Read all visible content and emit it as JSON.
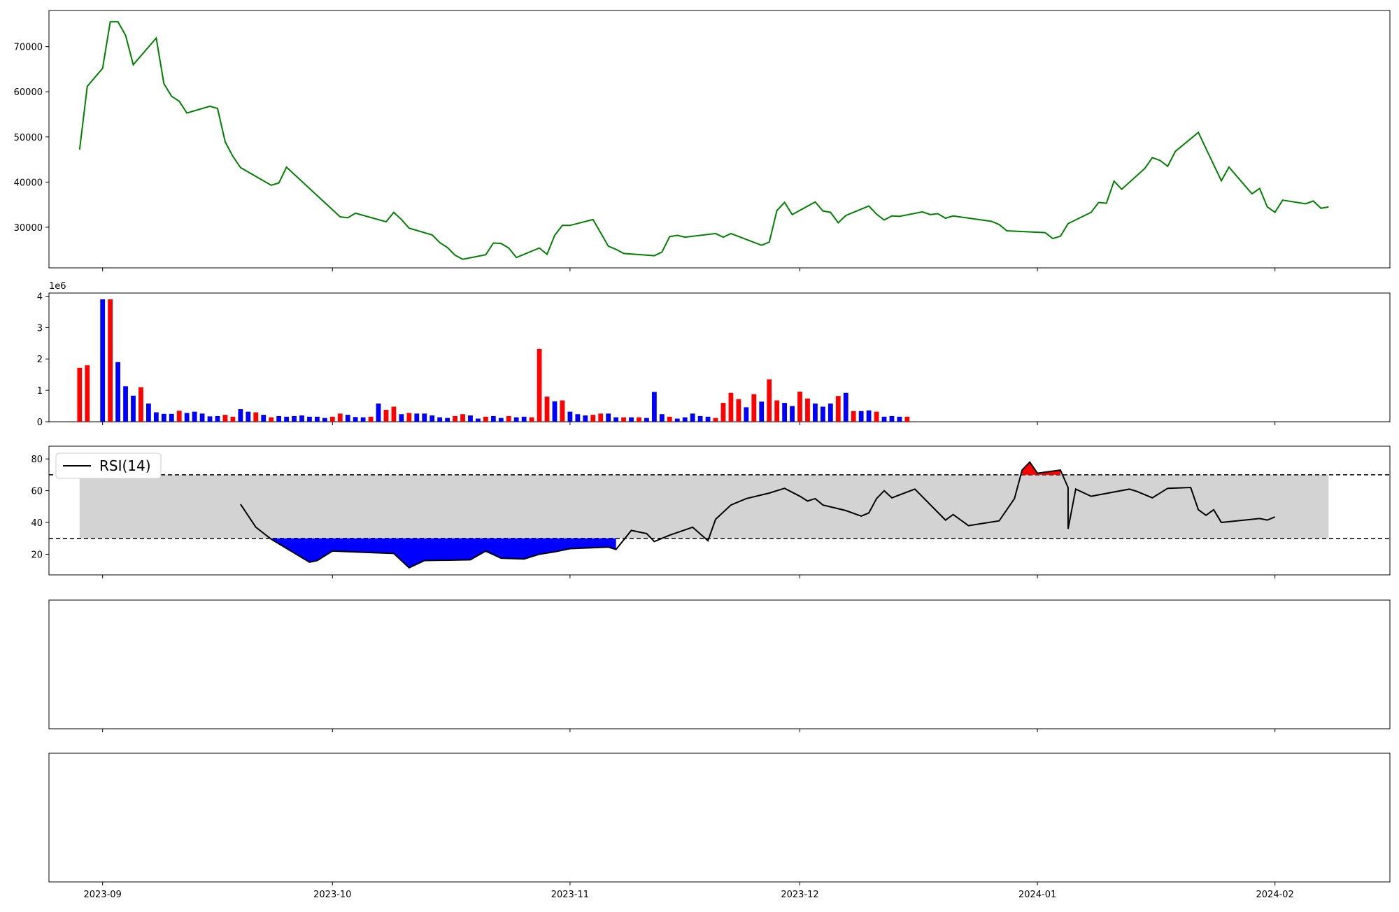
{
  "chart_data": [
    {
      "id": "price",
      "type": "line",
      "color": "#008000",
      "x_range": [
        "2023-08-25",
        "2024-02-16"
      ],
      "ylim": [
        21000,
        78000
      ],
      "yticks": [
        30000,
        40000,
        50000,
        60000,
        70000
      ],
      "ytick_labels": [
        "30000",
        "40000",
        "50000",
        "60000",
        "70000"
      ],
      "points": [
        [
          "2023-08-29",
          47200
        ],
        [
          "2023-08-30",
          61200
        ],
        [
          "2023-09-01",
          65200
        ],
        [
          "2023-09-02",
          75500
        ],
        [
          "2023-09-03",
          75500
        ],
        [
          "2023-09-04",
          72500
        ],
        [
          "2023-09-05",
          66000
        ],
        [
          "2023-09-08",
          71900
        ],
        [
          "2023-09-09",
          61800
        ],
        [
          "2023-09-10",
          59000
        ],
        [
          "2023-09-11",
          57900
        ],
        [
          "2023-09-12",
          55300
        ],
        [
          "2023-09-15",
          56800
        ],
        [
          "2023-09-16",
          56300
        ],
        [
          "2023-09-17",
          48900
        ],
        [
          "2023-09-18",
          45700
        ],
        [
          "2023-09-19",
          43200
        ],
        [
          "2023-09-23",
          39300
        ],
        [
          "2023-09-24",
          39800
        ],
        [
          "2023-09-25",
          43300
        ],
        [
          "2023-10-02",
          32300
        ],
        [
          "2023-10-03",
          32100
        ],
        [
          "2023-10-04",
          33100
        ],
        [
          "2023-10-08",
          31200
        ],
        [
          "2023-10-09",
          33300
        ],
        [
          "2023-10-10",
          31700
        ],
        [
          "2023-10-11",
          29800
        ],
        [
          "2023-10-14",
          28300
        ],
        [
          "2023-10-15",
          26600
        ],
        [
          "2023-10-16",
          25500
        ],
        [
          "2023-10-17",
          23800
        ],
        [
          "2023-10-18",
          22900
        ],
        [
          "2023-10-21",
          23900
        ],
        [
          "2023-10-22",
          26500
        ],
        [
          "2023-10-23",
          26400
        ],
        [
          "2023-10-24",
          25400
        ],
        [
          "2023-10-25",
          23300
        ],
        [
          "2023-10-28",
          25400
        ],
        [
          "2023-10-29",
          24000
        ],
        [
          "2023-10-30",
          28200
        ],
        [
          "2023-10-31",
          30400
        ],
        [
          "2023-11-01",
          30400
        ],
        [
          "2023-11-04",
          31700
        ],
        [
          "2023-11-06",
          25800
        ],
        [
          "2023-11-07",
          25100
        ],
        [
          "2023-11-08",
          24200
        ],
        [
          "2023-11-12",
          23700
        ],
        [
          "2023-11-13",
          24500
        ],
        [
          "2023-11-14",
          27900
        ],
        [
          "2023-11-15",
          28200
        ],
        [
          "2023-11-16",
          27800
        ],
        [
          "2023-11-20",
          28600
        ],
        [
          "2023-11-21",
          27800
        ],
        [
          "2023-11-22",
          28600
        ],
        [
          "2023-11-26",
          26000
        ],
        [
          "2023-11-27",
          26700
        ],
        [
          "2023-11-28",
          33700
        ],
        [
          "2023-11-29",
          35500
        ],
        [
          "2023-11-30",
          32800
        ],
        [
          "2023-12-03",
          35600
        ],
        [
          "2023-12-04",
          33600
        ],
        [
          "2023-12-05",
          33300
        ],
        [
          "2023-12-06",
          31000
        ],
        [
          "2023-12-07",
          32600
        ],
        [
          "2023-12-10",
          34700
        ],
        [
          "2023-12-11",
          32900
        ],
        [
          "2023-12-12",
          31600
        ],
        [
          "2023-12-13",
          32500
        ],
        [
          "2023-12-14",
          32400
        ],
        [
          "2023-12-17",
          33400
        ],
        [
          "2023-12-18",
          32800
        ],
        [
          "2023-12-19",
          33000
        ],
        [
          "2023-12-20",
          32000
        ],
        [
          "2023-12-21",
          32500
        ],
        [
          "2023-12-26",
          31300
        ],
        [
          "2023-12-27",
          30600
        ],
        [
          "2023-12-28",
          29200
        ],
        [
          "2024-01-02",
          28800
        ],
        [
          "2024-01-03",
          27500
        ],
        [
          "2024-01-04",
          28000
        ],
        [
          "2024-01-05",
          30800
        ],
        [
          "2024-01-08",
          33300
        ],
        [
          "2024-01-09",
          35500
        ],
        [
          "2024-01-10",
          35300
        ],
        [
          "2024-01-11",
          40200
        ],
        [
          "2024-01-12",
          38400
        ],
        [
          "2024-01-15",
          43000
        ],
        [
          "2024-01-16",
          45400
        ],
        [
          "2024-01-17",
          44800
        ],
        [
          "2024-01-18",
          43500
        ],
        [
          "2024-01-19",
          46800
        ],
        [
          "2024-01-22",
          51000
        ],
        [
          "2024-01-25",
          40300
        ],
        [
          "2024-01-26",
          43300
        ],
        [
          "2024-01-29",
          37400
        ],
        [
          "2024-01-30",
          38600
        ],
        [
          "2024-01-31",
          34500
        ],
        [
          "2024-02-01",
          33300
        ],
        [
          "2024-02-02",
          36000
        ],
        [
          "2024-02-05",
          35200
        ],
        [
          "2024-02-06",
          35800
        ],
        [
          "2024-02-07",
          34200
        ],
        [
          "2024-02-08",
          34500
        ]
      ]
    },
    {
      "id": "volume",
      "type": "bar",
      "x_range": [
        "2023-08-25",
        "2024-02-16"
      ],
      "ylim": [
        0,
        4100000
      ],
      "yticks": [
        0,
        1000000,
        2000000,
        3000000,
        4000000
      ],
      "ytick_labels": [
        "0",
        "1",
        "2",
        "3",
        "4"
      ],
      "offset_label": "1e6",
      "up_color": "#ff0000",
      "down_color": "#0000ff",
      "bars": [
        [
          "2023-08-29",
          1.72,
          "up"
        ],
        [
          "2023-08-30",
          1.8,
          "up"
        ],
        [
          "2023-09-01",
          3.9,
          "down"
        ],
        [
          "2023-09-02",
          3.9,
          "up"
        ],
        [
          "2023-09-03",
          1.9,
          "down"
        ],
        [
          "2023-09-04",
          1.13,
          "down"
        ],
        [
          "2023-09-05",
          0.83,
          "down"
        ],
        [
          "2023-09-06",
          1.1,
          "up"
        ],
        [
          "2023-09-07",
          0.58,
          "down"
        ],
        [
          "2023-09-08",
          0.3,
          "down"
        ],
        [
          "2023-09-09",
          0.25,
          "down"
        ],
        [
          "2023-09-10",
          0.25,
          "down"
        ],
        [
          "2023-09-11",
          0.35,
          "up"
        ],
        [
          "2023-09-12",
          0.28,
          "down"
        ],
        [
          "2023-09-13",
          0.32,
          "down"
        ],
        [
          "2023-09-14",
          0.26,
          "down"
        ],
        [
          "2023-09-15",
          0.17,
          "down"
        ],
        [
          "2023-09-16",
          0.18,
          "down"
        ],
        [
          "2023-09-17",
          0.22,
          "up"
        ],
        [
          "2023-09-18",
          0.16,
          "up"
        ],
        [
          "2023-09-19",
          0.4,
          "down"
        ],
        [
          "2023-09-20",
          0.32,
          "down"
        ],
        [
          "2023-09-21",
          0.3,
          "up"
        ],
        [
          "2023-09-22",
          0.22,
          "down"
        ],
        [
          "2023-09-23",
          0.14,
          "up"
        ],
        [
          "2023-09-24",
          0.18,
          "down"
        ],
        [
          "2023-09-25",
          0.16,
          "down"
        ],
        [
          "2023-09-26",
          0.18,
          "down"
        ],
        [
          "2023-09-27",
          0.2,
          "down"
        ],
        [
          "2023-09-28",
          0.16,
          "down"
        ],
        [
          "2023-09-29",
          0.16,
          "down"
        ],
        [
          "2023-09-30",
          0.12,
          "down"
        ],
        [
          "2023-10-01",
          0.16,
          "up"
        ],
        [
          "2023-10-02",
          0.26,
          "up"
        ],
        [
          "2023-10-03",
          0.22,
          "down"
        ],
        [
          "2023-10-04",
          0.15,
          "down"
        ],
        [
          "2023-10-05",
          0.14,
          "down"
        ],
        [
          "2023-10-06",
          0.16,
          "up"
        ],
        [
          "2023-10-07",
          0.58,
          "down"
        ],
        [
          "2023-10-08",
          0.38,
          "up"
        ],
        [
          "2023-10-09",
          0.48,
          "up"
        ],
        [
          "2023-10-10",
          0.24,
          "down"
        ],
        [
          "2023-10-11",
          0.28,
          "up"
        ],
        [
          "2023-10-12",
          0.26,
          "down"
        ],
        [
          "2023-10-13",
          0.26,
          "down"
        ],
        [
          "2023-10-14",
          0.2,
          "down"
        ],
        [
          "2023-10-15",
          0.14,
          "down"
        ],
        [
          "2023-10-16",
          0.12,
          "down"
        ],
        [
          "2023-10-17",
          0.18,
          "up"
        ],
        [
          "2023-10-18",
          0.24,
          "up"
        ],
        [
          "2023-10-19",
          0.2,
          "down"
        ],
        [
          "2023-10-20",
          0.1,
          "down"
        ],
        [
          "2023-10-21",
          0.16,
          "up"
        ],
        [
          "2023-10-22",
          0.18,
          "down"
        ],
        [
          "2023-10-23",
          0.12,
          "down"
        ],
        [
          "2023-10-24",
          0.18,
          "up"
        ],
        [
          "2023-10-25",
          0.14,
          "down"
        ],
        [
          "2023-10-26",
          0.16,
          "down"
        ],
        [
          "2023-10-27",
          0.14,
          "up"
        ],
        [
          "2023-10-28",
          2.32,
          "up"
        ],
        [
          "2023-10-29",
          0.8,
          "up"
        ],
        [
          "2023-10-30",
          0.65,
          "down"
        ],
        [
          "2023-10-31",
          0.68,
          "up"
        ],
        [
          "2023-11-01",
          0.32,
          "down"
        ],
        [
          "2023-11-02",
          0.24,
          "down"
        ],
        [
          "2023-11-03",
          0.2,
          "down"
        ],
        [
          "2023-11-04",
          0.22,
          "up"
        ],
        [
          "2023-11-05",
          0.26,
          "up"
        ],
        [
          "2023-11-06",
          0.26,
          "down"
        ],
        [
          "2023-11-07",
          0.14,
          "down"
        ],
        [
          "2023-11-08",
          0.14,
          "up"
        ],
        [
          "2023-11-09",
          0.14,
          "down"
        ],
        [
          "2023-11-10",
          0.14,
          "up"
        ],
        [
          "2023-11-11",
          0.12,
          "down"
        ],
        [
          "2023-11-12",
          0.95,
          "down"
        ],
        [
          "2023-11-13",
          0.24,
          "down"
        ],
        [
          "2023-11-14",
          0.16,
          "up"
        ],
        [
          "2023-11-15",
          0.1,
          "down"
        ],
        [
          "2023-11-16",
          0.14,
          "down"
        ],
        [
          "2023-11-17",
          0.26,
          "down"
        ],
        [
          "2023-11-18",
          0.18,
          "down"
        ],
        [
          "2023-11-19",
          0.16,
          "down"
        ],
        [
          "2023-11-20",
          0.12,
          "up"
        ],
        [
          "2023-11-21",
          0.6,
          "up"
        ],
        [
          "2023-11-22",
          0.92,
          "up"
        ],
        [
          "2023-11-23",
          0.72,
          "up"
        ],
        [
          "2023-11-24",
          0.46,
          "down"
        ],
        [
          "2023-11-25",
          0.88,
          "up"
        ],
        [
          "2023-11-26",
          0.64,
          "down"
        ],
        [
          "2023-11-27",
          1.35,
          "up"
        ],
        [
          "2023-11-28",
          0.68,
          "up"
        ],
        [
          "2023-11-29",
          0.6,
          "down"
        ],
        [
          "2023-11-30",
          0.5,
          "down"
        ],
        [
          "2023-12-01",
          0.96,
          "up"
        ],
        [
          "2023-12-02",
          0.74,
          "up"
        ],
        [
          "2023-12-03",
          0.58,
          "down"
        ],
        [
          "2023-12-04",
          0.48,
          "down"
        ],
        [
          "2023-12-05",
          0.58,
          "down"
        ],
        [
          "2023-12-06",
          0.82,
          "up"
        ],
        [
          "2023-12-07",
          0.92,
          "down"
        ],
        [
          "2023-12-08",
          0.34,
          "up"
        ],
        [
          "2023-12-09",
          0.34,
          "down"
        ],
        [
          "2023-12-10",
          0.36,
          "down"
        ],
        [
          "2023-12-11",
          0.32,
          "up"
        ],
        [
          "2023-12-12",
          0.16,
          "down"
        ],
        [
          "2023-12-13",
          0.18,
          "down"
        ],
        [
          "2023-12-14",
          0.16,
          "down"
        ],
        [
          "2023-12-15",
          0.16,
          "up"
        ]
      ]
    },
    {
      "id": "rsi",
      "type": "line",
      "color": "#000000",
      "legend": "RSI(14)",
      "x_range": [
        "2023-08-25",
        "2024-02-16"
      ],
      "ylim": [
        7,
        88
      ],
      "yticks": [
        20,
        40,
        60,
        80
      ],
      "ytick_labels": [
        "20",
        "40",
        "60",
        "80"
      ],
      "band": [
        30,
        70
      ],
      "band_start": "2023-08-29",
      "band_end": "2024-02-08",
      "points": [
        [
          "2023-09-19",
          51.5
        ],
        [
          "2023-09-21",
          37
        ],
        [
          "2023-09-23",
          29.5
        ],
        [
          "2023-09-28",
          15
        ],
        [
          "2023-09-29",
          16
        ],
        [
          "2023-10-01",
          22
        ],
        [
          "2023-10-09",
          20.5
        ],
        [
          "2023-10-11",
          11.5
        ],
        [
          "2023-10-13",
          16
        ],
        [
          "2023-10-19",
          16.5
        ],
        [
          "2023-10-21",
          22
        ],
        [
          "2023-10-23",
          17.5
        ],
        [
          "2023-10-26",
          17
        ],
        [
          "2023-10-28",
          20
        ],
        [
          "2023-10-30",
          21.5
        ],
        [
          "2023-11-01",
          23.5
        ],
        [
          "2023-11-06",
          24.5
        ],
        [
          "2023-11-07",
          23
        ],
        [
          "2023-11-09",
          35
        ],
        [
          "2023-11-11",
          33
        ],
        [
          "2023-11-12",
          28
        ],
        [
          "2023-11-14",
          32
        ],
        [
          "2023-11-17",
          37
        ],
        [
          "2023-11-19",
          28.5
        ],
        [
          "2023-11-20",
          42
        ],
        [
          "2023-11-22",
          51
        ],
        [
          "2023-11-24",
          55
        ],
        [
          "2023-11-27",
          58.5
        ],
        [
          "2023-11-29",
          61.5
        ],
        [
          "2023-12-01",
          56.5
        ],
        [
          "2023-12-02",
          53.5
        ],
        [
          "2023-12-03",
          55
        ],
        [
          "2023-12-04",
          51
        ],
        [
          "2023-12-07",
          47.5
        ],
        [
          "2023-12-09",
          44
        ],
        [
          "2023-12-10",
          46
        ],
        [
          "2023-12-11",
          55
        ],
        [
          "2023-12-12",
          60
        ],
        [
          "2023-12-13",
          55.5
        ],
        [
          "2023-12-16",
          61
        ],
        [
          "2023-12-20",
          41.5
        ],
        [
          "2023-12-21",
          45
        ],
        [
          "2023-12-23",
          38
        ],
        [
          "2023-12-27",
          41
        ],
        [
          "2023-12-29",
          55
        ],
        [
          "2023-12-30",
          73
        ],
        [
          "2023-12-31",
          78
        ],
        [
          "2024-01-01",
          71
        ],
        [
          "2024-01-04",
          73
        ],
        [
          "2024-01-05",
          62
        ],
        [
          "2024-01-06",
          61
        ],
        [
          "2024-01-08",
          56.5
        ],
        [
          "2024-01-13",
          61
        ],
        [
          "2024-01-14",
          59.5
        ],
        [
          "2024-01-16",
          55.5
        ],
        [
          "2024-01-18",
          61.5
        ],
        [
          "2024-01-21",
          62
        ],
        [
          "2024-01-22",
          48
        ],
        [
          "2024-01-23",
          44.5
        ],
        [
          "2024-01-24",
          48
        ],
        [
          "2024-01-25",
          40
        ],
        [
          "2024-01-30",
          42.5
        ],
        [
          "2024-01-31",
          41.5
        ],
        [
          "2024-02-01",
          43.5
        ],
        [
          "2024-01-05",
          36
        ]
      ]
    }
  ]
}
